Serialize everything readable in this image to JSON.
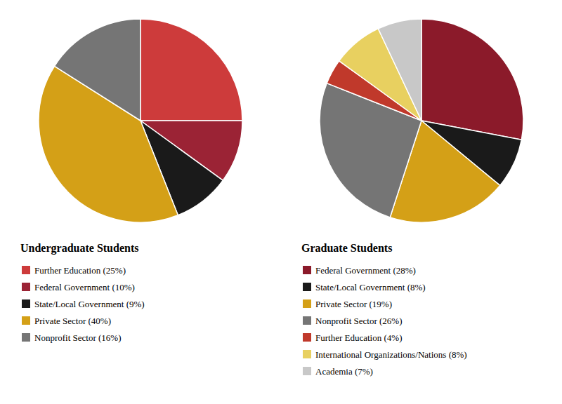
{
  "chart_data": [
    {
      "type": "pie",
      "title": "Undergraduate Students",
      "categories": [
        "Further Education (25%)",
        "Federal Government (10%)",
        "State/Local Government (9%)",
        "Private Sector (40%)",
        "Nonprofit Sector (16%)"
      ],
      "values": [
        25,
        10,
        9,
        40,
        16
      ],
      "colors": [
        "#cd3b3b",
        "#9b2335",
        "#1a1a1a",
        "#d4a017",
        "#757575"
      ],
      "legend": "bottom"
    },
    {
      "type": "pie",
      "title": "Graduate Students",
      "categories": [
        "Federal Government (28%)",
        "State/Local Government (8%)",
        "Private Sector (19%)",
        "Nonprofit Sector (26%)",
        "Further Education (4%)",
        "International Organizations/Nations (8%)",
        "Academia (7%)"
      ],
      "values": [
        28,
        8,
        19,
        26,
        4,
        8,
        7
      ],
      "colors": [
        "#8b1a2a",
        "#1a1a1a",
        "#d4a017",
        "#757575",
        "#c0392b",
        "#e8d060",
        "#c8c8c8"
      ],
      "legend": "bottom"
    }
  ]
}
